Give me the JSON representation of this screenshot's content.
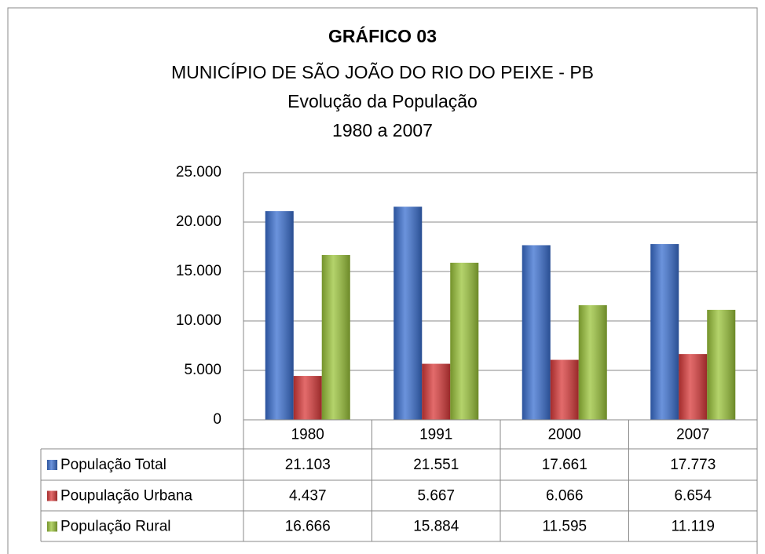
{
  "chart_data": {
    "type": "bar",
    "title": "GRÁFICO 03",
    "subtitle": [
      "MUNICÍPIO DE SÃO JOÃO DO RIO DO PEIXE - PB",
      "Evolução da População",
      "1980 a 2007"
    ],
    "categories": [
      "1980",
      "1991",
      "2000",
      "2007"
    ],
    "series": [
      {
        "name": "População Total",
        "color": "#3a6fd0",
        "values": [
          21103,
          21551,
          17661,
          17773
        ],
        "value_labels": [
          "21.103",
          "21.551",
          "17.661",
          "17.773"
        ]
      },
      {
        "name": "Poupulação Urbana",
        "color": "#d93a3a",
        "values": [
          4437,
          5667,
          6066,
          6654
        ],
        "value_labels": [
          "4.437",
          "5.667",
          "6.066",
          "6.654"
        ]
      },
      {
        "name": "População Rural",
        "color": "#9bc43a",
        "values": [
          16666,
          15884,
          11595,
          11119
        ],
        "value_labels": [
          "16.666",
          "15.884",
          "11.595",
          "11.119"
        ]
      }
    ],
    "ylim": [
      0,
      25000
    ],
    "yticks": [
      0,
      {
        "value": 5000,
        "label": "5.000"
      },
      {
        "value": 10000,
        "label": "10.000"
      },
      {
        "value": 15000,
        "label": "15.000"
      },
      {
        "value": 20000,
        "label": "20.000"
      },
      {
        "value": 25000,
        "label": "25.000"
      }
    ],
    "grid": true
  }
}
